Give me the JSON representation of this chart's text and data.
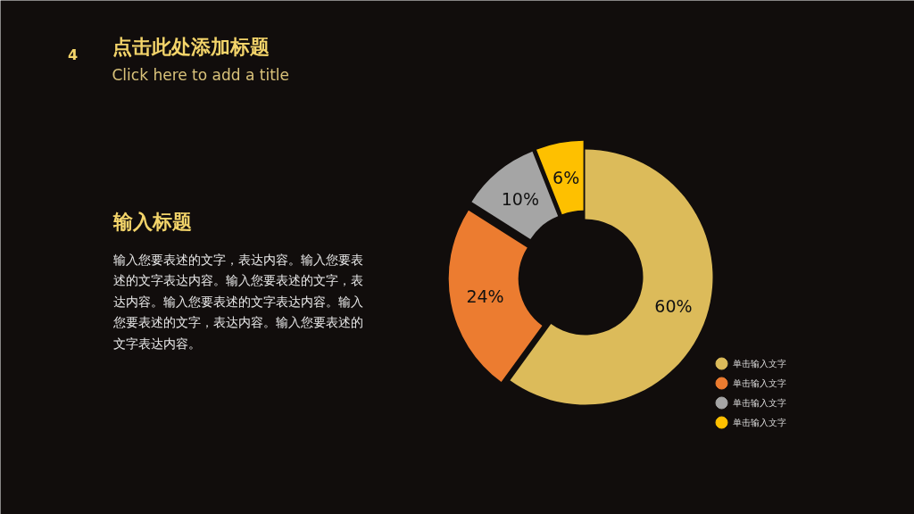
{
  "chart_data": {
    "type": "donut",
    "title": "点击此处添加标题",
    "subtitle": "Click here to add a title",
    "annotations": [
      "4",
      "输入标题",
      "输入您要表述的文字，表达内容。输入您要表述的文字表达内容。输入您要表述的文字，表达内容。输入您要表述的文字表达内容。输入您要表述的文字，表达内容。输入您要表述的文字表达内容。"
    ],
    "categories": [
      "单击输入文字",
      "单击输入文字",
      "单击输入文字",
      "单击输入文字"
    ],
    "values": [
      60,
      24,
      10,
      6
    ],
    "colors": [
      "#dcbb5a",
      "#ec7c30",
      "#a5a5a5",
      "#fec000"
    ],
    "value_labels": [
      "60%",
      "24%",
      "10%",
      "6%"
    ],
    "legend": "bottom right"
  }
}
